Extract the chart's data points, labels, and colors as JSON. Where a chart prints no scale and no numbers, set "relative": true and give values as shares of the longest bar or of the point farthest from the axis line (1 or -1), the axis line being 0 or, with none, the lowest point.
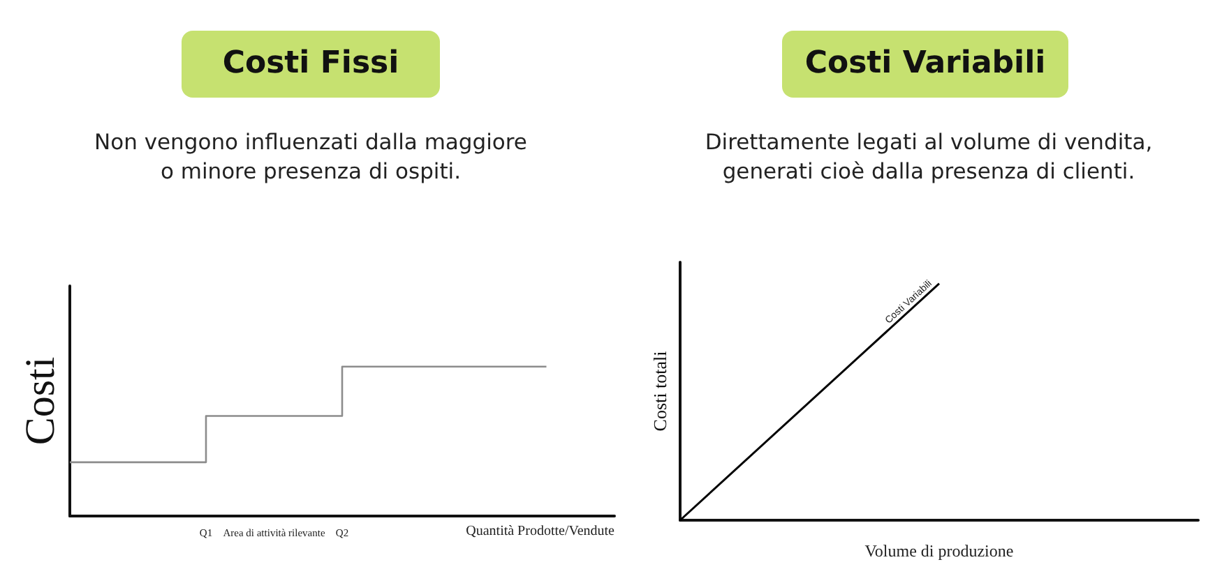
{
  "chart_data": [
    {
      "type": "step",
      "title": "Costi Fissi",
      "subtitle": "Non vengono influenzati dalla maggiore\no minore presenza di ospiti.",
      "xlabel": "Quantità Prodotte/Vendute",
      "ylabel": "Costi",
      "relative": true,
      "tick_labels": "x",
      "categories": [
        null,
        null,
        "Q1",
        "Area di attività rilevante",
        "Q2",
        null,
        null,
        null,
        null
      ],
      "series": [
        {
          "color": "#8c8c8c",
          "values": [
            0.36,
            0.36,
            0.67,
            0.67,
            1,
            1,
            1,
            1,
            null
          ]
        }
      ]
    },
    {
      "type": "line",
      "title": "Costi Variabili",
      "subtitle": "Direttamente legati al volume di vendita,\ngenerati cioè dalla presenza di clienti.",
      "xlabel": "Volume di produzione",
      "ylabel": "Costi totali",
      "relative": true,
      "tick_labels": false,
      "categories": [
        null,
        null,
        null
      ],
      "series": [
        {
          "name": "Costi Variabili",
          "color": "#000000",
          "values": [
            0,
            1,
            null
          ]
        }
      ]
    }
  ]
}
